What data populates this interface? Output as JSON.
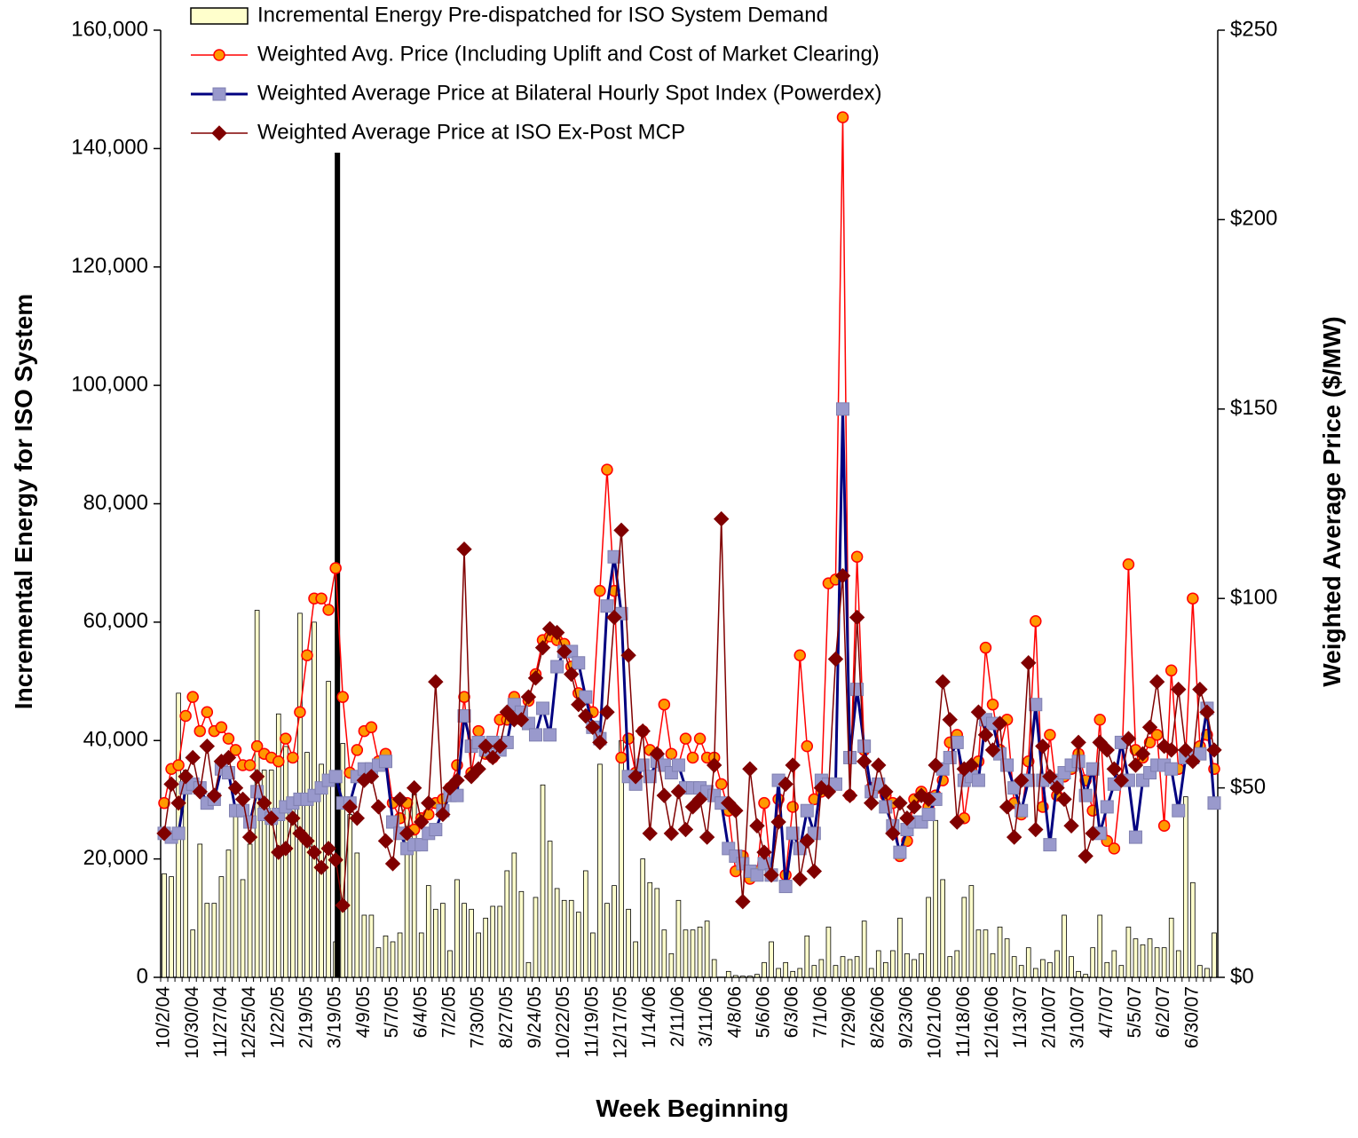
{
  "chart_data": {
    "type": "combo",
    "x_label": "Week Beginning",
    "y_label": "Incremental Energy for ISO System",
    "y2_label": "Weighted Average Price ($/MW)",
    "ylim": [
      0,
      160000
    ],
    "yticks": [
      0,
      {
        "value": 20000,
        "label": "20,000"
      },
      {
        "value": 40000,
        "label": "40,000"
      },
      {
        "value": 60000,
        "label": "60,000"
      },
      {
        "value": 80000,
        "label": "80,000"
      },
      {
        "value": 100000,
        "label": "100,000"
      },
      {
        "value": 120000,
        "label": "120,000"
      },
      {
        "value": 140000,
        "label": "140,000"
      },
      {
        "value": 160000,
        "label": "160,000"
      }
    ],
    "y2lim": [
      0,
      250
    ],
    "y2ticks": [
      {
        "value": 0,
        "label": "$0"
      },
      {
        "value": 50,
        "label": "$50"
      },
      {
        "value": 100,
        "label": "$100"
      },
      {
        "value": 150,
        "label": "$150"
      },
      {
        "value": 200,
        "label": "$200"
      },
      {
        "value": 250,
        "label": "$250"
      }
    ],
    "categories": [
      "10/2/04",
      null,
      null,
      null,
      "10/30/04",
      null,
      null,
      null,
      "11/27/04",
      null,
      null,
      null,
      "12/25/04",
      null,
      null,
      null,
      "1/22/05",
      null,
      null,
      null,
      "2/19/05",
      null,
      null,
      null,
      "3/19/05",
      null,
      null,
      null,
      "4/9/05",
      null,
      null,
      null,
      "5/7/05",
      null,
      null,
      null,
      "6/4/05",
      null,
      null,
      null,
      "7/2/05",
      null,
      null,
      null,
      "7/30/05",
      null,
      null,
      null,
      "8/27/05",
      null,
      null,
      null,
      "9/24/05",
      null,
      null,
      null,
      "10/22/05",
      null,
      null,
      null,
      "11/19/05",
      null,
      null,
      null,
      "12/17/05",
      null,
      null,
      null,
      "1/14/06",
      null,
      null,
      null,
      "2/11/06",
      null,
      null,
      null,
      "3/11/06",
      null,
      null,
      null,
      "4/8/06",
      null,
      null,
      null,
      "5/6/06",
      null,
      null,
      null,
      "6/3/06",
      null,
      null,
      null,
      "7/1/06",
      null,
      null,
      null,
      "7/29/06",
      null,
      null,
      null,
      "8/26/06",
      null,
      null,
      null,
      "9/23/06",
      null,
      null,
      null,
      "10/21/06",
      null,
      null,
      null,
      "11/18/06",
      null,
      null,
      null,
      "12/16/06",
      null,
      null,
      null,
      "1/13/07",
      null,
      null,
      null,
      "2/10/07",
      null,
      null,
      null,
      "3/10/07",
      null,
      null,
      null,
      "4/7/07",
      null,
      null,
      null,
      "5/5/07",
      null,
      null,
      null,
      "6/2/07",
      null,
      null,
      null,
      "6/30/07",
      null,
      null,
      null
    ],
    "series": [
      {
        "name": "Incremental Energy Pre-dispatched for ISO System Demand",
        "type": "bar",
        "color": "#ffffcc",
        "values": [
          17500,
          17000,
          48000,
          35000,
          8000,
          22500,
          12500,
          12500,
          17000,
          21500,
          28000,
          16500,
          22500,
          62000,
          35000,
          35000,
          44500,
          39000,
          30000,
          61500,
          38000,
          60000,
          36000,
          50000,
          6000,
          39500,
          27500,
          21000,
          10500,
          10500,
          5000,
          7000,
          6000,
          7500,
          29000,
          31000,
          7500,
          15500,
          11500,
          12500,
          4500,
          16500,
          12500,
          11500,
          7500,
          10000,
          12000,
          12000,
          18000,
          21000,
          14500,
          2500,
          13500,
          32500,
          23000,
          15000,
          13000,
          13000,
          11000,
          18000,
          7500,
          36000,
          12500,
          15500,
          40000,
          11500,
          6000,
          20000,
          16000,
          15000,
          8000,
          4000,
          13000,
          8000,
          8000,
          8500,
          9500,
          3000,
          0,
          1000,
          300,
          200,
          200,
          500,
          2500,
          6000,
          1500,
          2500,
          1000,
          1500,
          7000,
          2000,
          3000,
          8500,
          2000,
          3500,
          3000,
          3500,
          9500,
          1500,
          4500,
          2500,
          4500,
          10000,
          4000,
          3000,
          4000,
          13500,
          26500,
          16500,
          3500,
          4500,
          13500,
          15500,
          8000,
          8000,
          4000,
          8500,
          6500,
          3500,
          2000,
          5000,
          1500,
          3000,
          2500,
          4500,
          10500,
          3500,
          1000,
          500,
          5000,
          10500,
          2500,
          4500,
          2000,
          8500,
          6500,
          5500,
          6500,
          5000,
          5000,
          10000,
          4500,
          30500,
          16000,
          2000,
          1500,
          7500
        ]
      },
      {
        "name": "Weighted Avg. Price (Including Uplift and Cost of Market Clearing)",
        "type": "line",
        "axis": "y2",
        "marker": "circle",
        "color": "#ff0000",
        "values": [
          46,
          55,
          56,
          69,
          74,
          65,
          70,
          65,
          66,
          63,
          60,
          56,
          56,
          61,
          59,
          58,
          57,
          63,
          58,
          70,
          85,
          100,
          100,
          97,
          108,
          74,
          54,
          60,
          65,
          66,
          57,
          59,
          46,
          42,
          46,
          39,
          42,
          43,
          46,
          47,
          50,
          56,
          74,
          54,
          65,
          59,
          58,
          68,
          68,
          74,
          68,
          73,
          80,
          89,
          90,
          89,
          88,
          82,
          75,
          74,
          70,
          102,
          134,
          102,
          58,
          63,
          54,
          65,
          60,
          59,
          72,
          59,
          56,
          63,
          58,
          63,
          58,
          58,
          51,
          44,
          28,
          32,
          26,
          28,
          46,
          27,
          47,
          27,
          45,
          85,
          61,
          47,
          49,
          104,
          105,
          227,
          48,
          111,
          60,
          50,
          50,
          48,
          46,
          32,
          36,
          47,
          49,
          45,
          48,
          52,
          62,
          64,
          42,
          55,
          57,
          87,
          72,
          60,
          68,
          46,
          43,
          57,
          94,
          45,
          64,
          48,
          53,
          55,
          59,
          52,
          44,
          68,
          36,
          34,
          52,
          109,
          60,
          58,
          62,
          64,
          40,
          81,
          55,
          58,
          100,
          61,
          64,
          55
        ]
      },
      {
        "name": "Weighted Average Price at Bilateral Hourly Spot Index (Powerdex)",
        "type": "line",
        "axis": "y2",
        "marker": "square",
        "color": "#000080",
        "values": [
          38,
          37,
          38,
          50,
          51,
          50,
          46,
          47,
          55,
          54,
          44,
          44,
          41,
          49,
          43,
          42,
          43,
          45,
          46,
          47,
          47,
          48,
          50,
          52,
          53,
          46,
          46,
          53,
          55,
          55,
          56,
          57,
          41,
          38,
          34,
          35,
          35,
          38,
          39,
          44,
          48,
          48,
          69,
          61,
          62,
          60,
          62,
          60,
          62,
          72,
          70,
          67,
          64,
          71,
          64,
          82,
          86,
          86,
          83,
          74,
          66,
          63,
          98,
          111,
          96,
          53,
          51,
          56,
          53,
          57,
          56,
          54,
          56,
          50,
          50,
          50,
          49,
          48,
          46,
          34,
          32,
          30,
          28,
          27,
          30,
          27,
          52,
          24,
          38,
          34,
          44,
          38,
          52,
          51,
          51,
          150,
          58,
          76,
          61,
          49,
          51,
          45,
          40,
          33,
          39,
          41,
          41,
          43,
          47,
          55,
          58,
          62,
          52,
          53,
          52,
          68,
          67,
          59,
          56,
          50,
          44,
          52,
          72,
          52,
          35,
          52,
          54,
          56,
          57,
          48,
          55,
          38,
          45,
          51,
          62,
          52,
          37,
          52,
          54,
          56,
          56,
          55,
          44,
          58,
          58,
          59,
          71,
          46
        ]
      },
      {
        "name": "Weighted Average Price at ISO Ex-Post MCP",
        "type": "line",
        "axis": "y2",
        "marker": "diamond",
        "color": "#800000",
        "values": [
          38,
          51,
          46,
          53,
          58,
          49,
          61,
          48,
          57,
          58,
          50,
          47,
          37,
          53,
          46,
          42,
          33,
          34,
          42,
          38,
          36,
          33,
          29,
          34,
          31,
          19,
          45,
          42,
          52,
          53,
          45,
          36,
          30,
          47,
          38,
          50,
          41,
          46,
          78,
          43,
          50,
          52,
          113,
          53,
          55,
          61,
          58,
          61,
          70,
          68,
          68,
          74,
          79,
          87,
          92,
          91,
          86,
          80,
          72,
          69,
          66,
          62,
          70,
          95,
          118,
          85,
          53,
          65,
          38,
          59,
          48,
          38,
          49,
          39,
          45,
          47,
          37,
          56,
          121,
          46,
          44,
          20,
          55,
          40,
          33,
          27,
          41,
          51,
          56,
          26,
          36,
          28,
          50,
          49,
          84,
          106,
          48,
          95,
          57,
          46,
          56,
          49,
          38,
          46,
          42,
          45,
          48,
          47,
          56,
          78,
          68,
          41,
          55,
          56,
          70,
          64,
          60,
          67,
          45,
          37,
          52,
          83,
          39,
          61,
          53,
          50,
          47,
          40,
          62,
          32,
          38,
          62,
          60,
          55,
          52,
          63,
          56,
          59,
          66,
          78,
          61,
          60,
          76,
          60,
          57,
          76,
          70,
          60
        ]
      }
    ]
  }
}
